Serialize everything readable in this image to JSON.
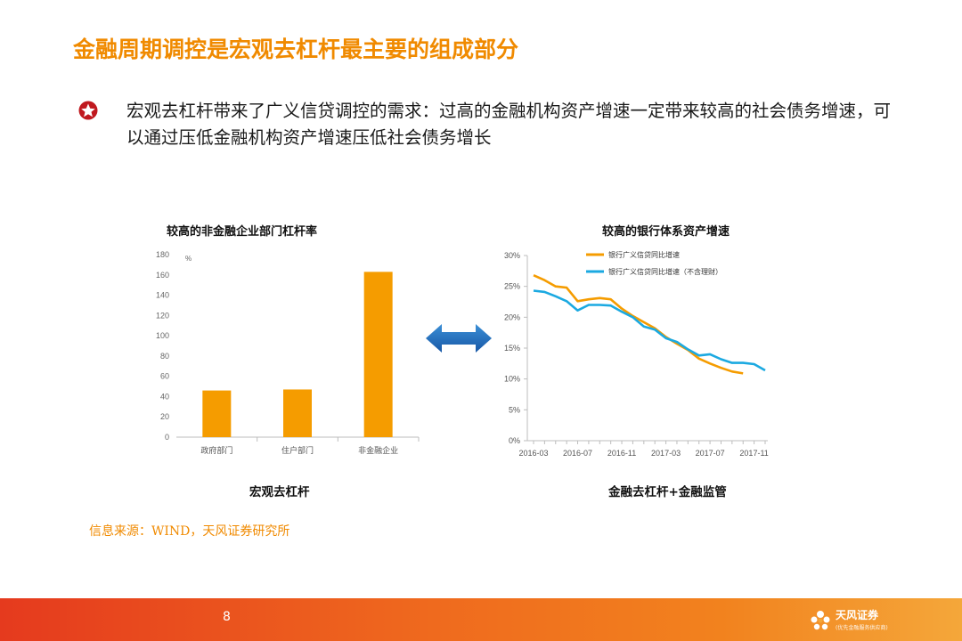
{
  "slide": {
    "title": "金融周期调控是宏观去杠杆最主要的组成部分",
    "bullet": "宏观去杠杆带来了广义信贷调控的需求：过高的金融机构资产增速一定带来较高的社会债务增速，可以通过压低金融机构资产增速压低社会债务增长",
    "source": "信息来源：WIND，天风证券研究所",
    "page_number": "8",
    "logo_text": "天风证券",
    "logo_subtext": "(优先金融服务供应商)",
    "accent_color": "#f08a00",
    "footer_colors": [
      "#e53a1e",
      "#f4a73a"
    ]
  },
  "left": {
    "title": "较高的非金融企业部门杠杆率",
    "caption": "宏观去杠杆"
  },
  "right": {
    "title": "较高的银行体系资产增速",
    "caption": "金融去杠杆+金融监管"
  },
  "arrow": {
    "icon": "double-arrow-icon",
    "color": "#1f6fbf"
  },
  "chart_data": [
    {
      "type": "bar",
      "categories": [
        "政府部门",
        "住户部门",
        "非金融企业"
      ],
      "values": [
        46,
        47,
        163
      ],
      "ylabel": "%",
      "ylim": [
        0,
        180
      ],
      "yticks": [
        0,
        20,
        40,
        60,
        80,
        100,
        120,
        140,
        160,
        180
      ],
      "color": "#f59c00",
      "grid": false
    },
    {
      "type": "line",
      "x": [
        "2016-03",
        "2016-04",
        "2016-05",
        "2016-06",
        "2016-07",
        "2016-08",
        "2016-09",
        "2016-10",
        "2016-11",
        "2016-12",
        "2017-01",
        "2017-02",
        "2017-03",
        "2017-04",
        "2017-05",
        "2017-06",
        "2017-07",
        "2017-08",
        "2017-09",
        "2017-10",
        "2017-11",
        "2017-12"
      ],
      "xticks": [
        "2016-03",
        "2016-07",
        "2016-11",
        "2017-03",
        "2017-07",
        "2017-11"
      ],
      "yticks": [
        "0%",
        "5%",
        "10%",
        "15%",
        "20%",
        "25%",
        "30%"
      ],
      "ylim": [
        0,
        30
      ],
      "series": [
        {
          "name": "银行广义信贷同比增速",
          "color": "#f59c00",
          "values": [
            26.8,
            26.0,
            25.0,
            24.8,
            22.6,
            22.9,
            23.1,
            22.9,
            21.4,
            20.2,
            19.2,
            18.2,
            16.8,
            15.7,
            14.7,
            13.3,
            12.5,
            11.8,
            11.2,
            10.9,
            null,
            null
          ]
        },
        {
          "name": "银行广义信贷同比增速（不含理财）",
          "color": "#1ba9e1",
          "values": [
            24.3,
            24.1,
            23.4,
            22.6,
            21.1,
            22.0,
            22.0,
            21.9,
            20.9,
            20.0,
            18.5,
            18.0,
            16.6,
            16.0,
            14.8,
            13.8,
            14.0,
            13.2,
            12.6,
            12.6,
            12.4,
            11.4
          ]
        }
      ],
      "legend": "top-left",
      "grid": false
    }
  ]
}
